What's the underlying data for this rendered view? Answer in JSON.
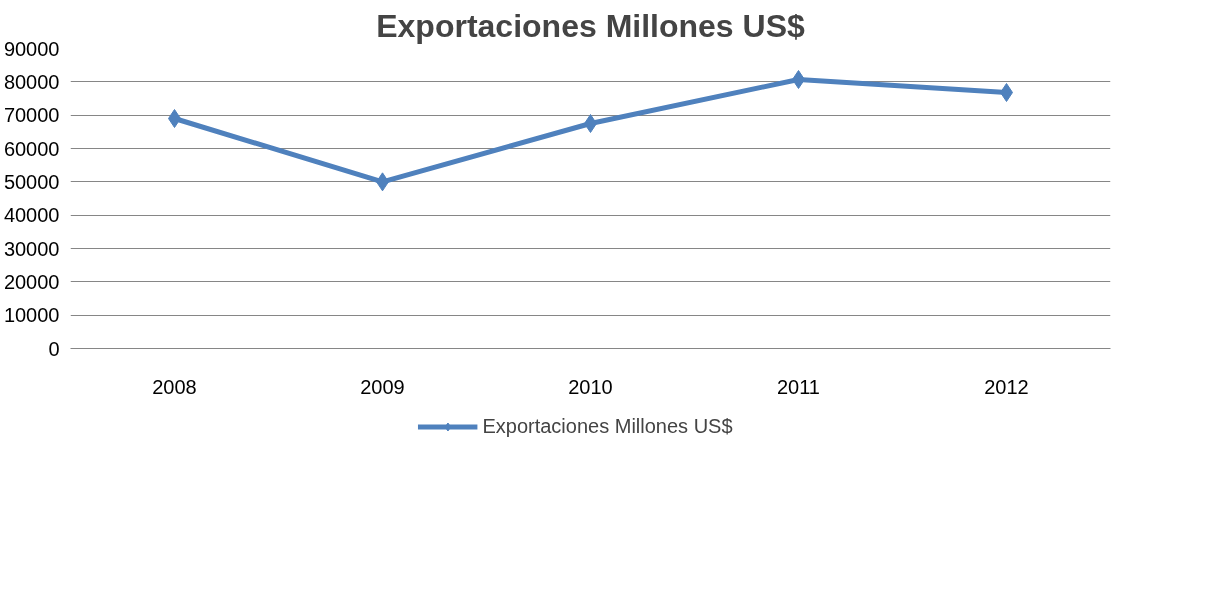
{
  "chart_data": {
    "type": "line",
    "title": "Exportaciones Millones US$",
    "categories": [
      "2008",
      "2009",
      "2010",
      "2011",
      "2012"
    ],
    "series": [
      {
        "name": "Exportaciones Millones US$",
        "color": "#4f81bd",
        "values": [
          69000,
          50000,
          67500,
          80700,
          76800
        ]
      }
    ],
    "ylim": [
      0,
      90000
    ],
    "yticks": [
      0,
      10000,
      20000,
      30000,
      40000,
      50000,
      60000,
      70000,
      80000,
      90000
    ],
    "grid": "y",
    "legend": "bottom",
    "marker": "diamond",
    "line_style": "solid"
  }
}
